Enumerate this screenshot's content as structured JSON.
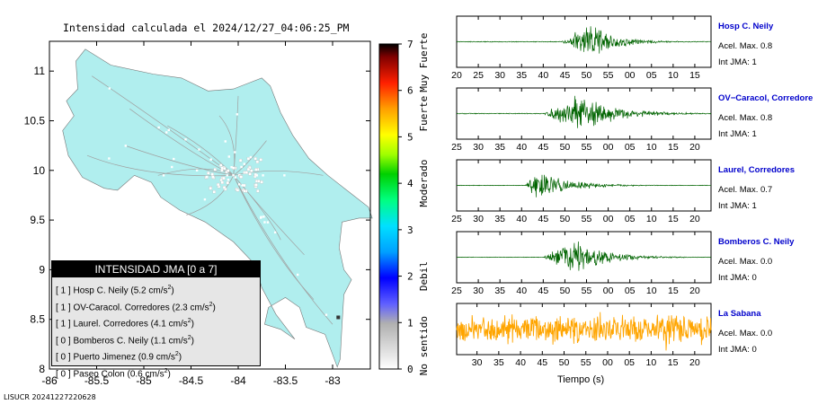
{
  "title": "Intensidad calculada el 2024/12/27_04:06:25_PM",
  "footer": "LISUCR 20241227220628",
  "map": {
    "x_ticks": [
      "-86",
      "-85.5",
      "-85",
      "-84.5",
      "-84",
      "-83.5",
      "-83"
    ],
    "y_ticks": [
      "8",
      "8.5",
      "9",
      "9.5",
      "10",
      "10.5",
      "11"
    ],
    "xlim": [
      -86,
      -82.6
    ],
    "ylim": [
      8,
      11.3
    ],
    "land_color": "#b0eeee",
    "road_color": "#a0a0a0"
  },
  "colorbar": {
    "ticks": [
      "0",
      "1",
      "2",
      "3",
      "4",
      "5",
      "6",
      "7"
    ],
    "range": [
      0,
      7
    ],
    "labels": [
      "No sentido",
      "Debil",
      "Moderado",
      "Fuerte",
      "Muy Fuerte"
    ]
  },
  "legend": {
    "header": "INTENSIDAD JMA [0 a 7]",
    "items": [
      {
        "jma": "[ 1 ]",
        "station": "Hosp C. Neily",
        "acc": "(5.2 cm/s",
        "exp": "2",
        "close": ")"
      },
      {
        "jma": "[ 1 ]",
        "station": "OV-Caracol. Corredores",
        "acc": "(2.3 cm/s",
        "exp": "2",
        "close": ")"
      },
      {
        "jma": "[ 1 ]",
        "station": "Laurel. Corredores",
        "acc": "(4.1 cm/s",
        "exp": "2",
        "close": ")"
      },
      {
        "jma": "[ 0 ]",
        "station": "Bomberos C. Neily",
        "acc": "(1.1 cm/s",
        "exp": "2",
        "close": ")"
      },
      {
        "jma": "[ 0 ]",
        "station": "Puerto Jimenez",
        "acc": "(0.9 cm/s",
        "exp": "2",
        "close": ")"
      },
      {
        "jma": "[ 0 ]",
        "station": "Paseo Colon",
        "acc": "(0.6 cm/s",
        "exp": "2",
        "close": ")"
      }
    ]
  },
  "seismograms": {
    "xlabel": "Tiempo (s)",
    "traces": [
      {
        "name": "Hosp C. Neily",
        "acc_label": "Acel. Max. 0.8",
        "int_label": "Int JMA: 1",
        "color": "#006400",
        "ticks": [
          "20",
          "25",
          "30",
          "35",
          "40",
          "45",
          "50",
          "55",
          "00",
          "05",
          "10",
          "15"
        ]
      },
      {
        "name": "OV−Caracol, Corredore",
        "acc_label": "Acel. Max. 0.8",
        "int_label": "Int JMA: 1",
        "color": "#006400",
        "ticks": [
          "25",
          "30",
          "35",
          "40",
          "45",
          "50",
          "55",
          "00",
          "05",
          "10",
          "15",
          "20"
        ]
      },
      {
        "name": "Laurel, Corredores",
        "acc_label": "Acel. Max. 0.7",
        "int_label": "Int JMA: 1",
        "color": "#006400",
        "ticks": [
          "25",
          "30",
          "35",
          "40",
          "45",
          "50",
          "55",
          "00",
          "05",
          "10",
          "15",
          "20"
        ]
      },
      {
        "name": "Bomberos C. Neily",
        "acc_label": "Acel. Max. 0.0",
        "int_label": "Int JMA: 0",
        "color": "#006400",
        "ticks": [
          "25",
          "30",
          "35",
          "40",
          "45",
          "50",
          "55",
          "00",
          "05",
          "10",
          "15",
          "20"
        ]
      },
      {
        "name": "La Sabana",
        "acc_label": "Acel. Max. 0.0",
        "int_label": "Int JMA: 0",
        "color": "#ffa500",
        "ticks": [
          "30",
          "35",
          "40",
          "45",
          "50",
          "55",
          "00",
          "05",
          "10",
          "15",
          "20"
        ]
      }
    ]
  },
  "chart_data": [
    {
      "type": "heatmap",
      "title": "Intensidad calculada el 2024/12/27_04:06:25_PM",
      "xlim": [
        -86,
        -82.6
      ],
      "ylim": [
        8,
        11.3
      ],
      "color_scale": {
        "min": 0,
        "max": 7,
        "labels": [
          "No sentido",
          "Debil",
          "Moderado",
          "Fuerte",
          "Muy Fuerte"
        ]
      },
      "stations": [
        {
          "name": "Hosp C. Neily",
          "jma": 1,
          "acc_cm_s2": 5.2
        },
        {
          "name": "OV-Caracol. Corredores",
          "jma": 1,
          "acc_cm_s2": 2.3
        },
        {
          "name": "Laurel. Corredores",
          "jma": 1,
          "acc_cm_s2": 4.1
        },
        {
          "name": "Bomberos C. Neily",
          "jma": 0,
          "acc_cm_s2": 1.1
        },
        {
          "name": "Puerto Jimenez",
          "jma": 0,
          "acc_cm_s2": 0.9
        },
        {
          "name": "Paseo Colon",
          "jma": 0,
          "acc_cm_s2": 0.6
        }
      ]
    },
    {
      "type": "line",
      "xlabel": "Tiempo (s)",
      "series": [
        {
          "name": "Hosp C. Neily",
          "acel_max": 0.8,
          "int_jma": 1
        },
        {
          "name": "OV−Caracol, Corredore",
          "acel_max": 0.8,
          "int_jma": 1
        },
        {
          "name": "Laurel, Corredores",
          "acel_max": 0.7,
          "int_jma": 1
        },
        {
          "name": "Bomberos C. Neily",
          "acel_max": 0.0,
          "int_jma": 0
        },
        {
          "name": "La Sabana",
          "acel_max": 0.0,
          "int_jma": 0
        }
      ]
    }
  ]
}
